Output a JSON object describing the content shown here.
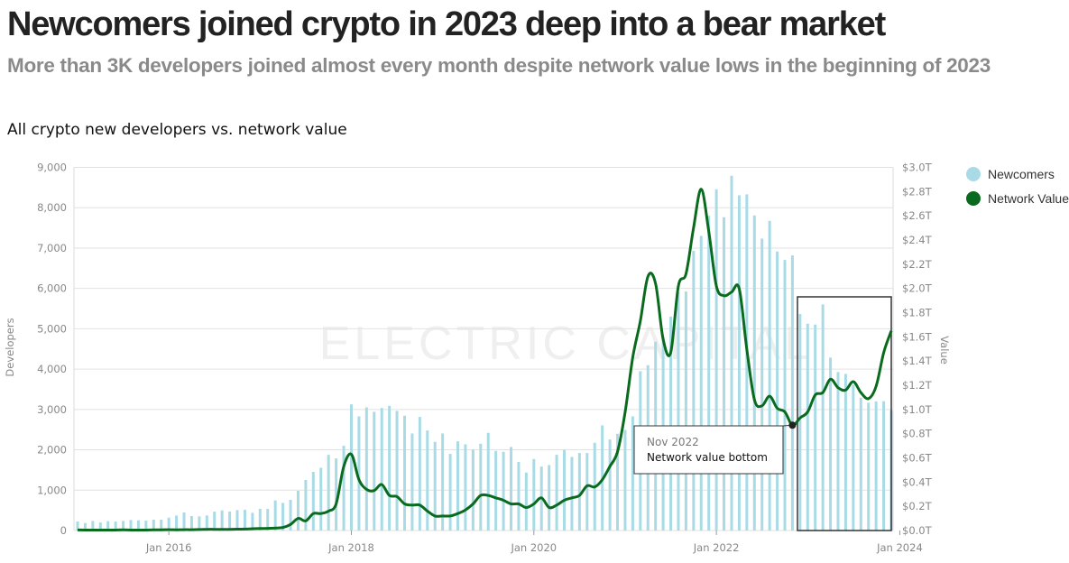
{
  "header": {
    "title": "Newcomers joined crypto in 2023 deep into a bear market",
    "subtitle": "More than 3K developers joined almost every month despite network value lows in the beginning of 2023"
  },
  "chart_data": {
    "type": "bar+line",
    "title": "All crypto new developers vs. network value",
    "watermark": "ELECTRIC CAPITAL",
    "ylabel_left": "Developers",
    "ylabel_right": "Value",
    "ylim_left": [
      0,
      9000
    ],
    "ylim_right": [
      0,
      3.0
    ],
    "yticks_left": [
      "0",
      "1,000",
      "2,000",
      "3,000",
      "4,000",
      "5,000",
      "6,000",
      "7,000",
      "8,000",
      "9,000"
    ],
    "yticks_right": [
      "$0.0T",
      "$0.2T",
      "$0.4T",
      "$0.6T",
      "$0.8T",
      "$1.0T",
      "$1.2T",
      "$1.4T",
      "$1.6T",
      "$1.8T",
      "$2.0T",
      "$2.2T",
      "$2.4T",
      "$2.6T",
      "$2.8T",
      "$3.0T"
    ],
    "xticks": [
      "Jan 2016",
      "Jan 2018",
      "Jan 2020",
      "Jan 2022",
      "Jan 2024"
    ],
    "grid": true,
    "legend_position": "right",
    "colors": {
      "newcomers": "#a9dbe6",
      "network_value": "#0a6b1f"
    },
    "x": [
      "2015-01",
      "2015-02",
      "2015-03",
      "2015-04",
      "2015-05",
      "2015-06",
      "2015-07",
      "2015-08",
      "2015-09",
      "2015-10",
      "2015-11",
      "2015-12",
      "2016-01",
      "2016-02",
      "2016-03",
      "2016-04",
      "2016-05",
      "2016-06",
      "2016-07",
      "2016-08",
      "2016-09",
      "2016-10",
      "2016-11",
      "2016-12",
      "2017-01",
      "2017-02",
      "2017-03",
      "2017-04",
      "2017-05",
      "2017-06",
      "2017-07",
      "2017-08",
      "2017-09",
      "2017-10",
      "2017-11",
      "2017-12",
      "2018-01",
      "2018-02",
      "2018-03",
      "2018-04",
      "2018-05",
      "2018-06",
      "2018-07",
      "2018-08",
      "2018-09",
      "2018-10",
      "2018-11",
      "2018-12",
      "2019-01",
      "2019-02",
      "2019-03",
      "2019-04",
      "2019-05",
      "2019-06",
      "2019-07",
      "2019-08",
      "2019-09",
      "2019-10",
      "2019-11",
      "2019-12",
      "2020-01",
      "2020-02",
      "2020-03",
      "2020-04",
      "2020-05",
      "2020-06",
      "2020-07",
      "2020-08",
      "2020-09",
      "2020-10",
      "2020-11",
      "2020-12",
      "2021-01",
      "2021-02",
      "2021-03",
      "2021-04",
      "2021-05",
      "2021-06",
      "2021-07",
      "2021-08",
      "2021-09",
      "2021-10",
      "2021-11",
      "2021-12",
      "2022-01",
      "2022-02",
      "2022-03",
      "2022-04",
      "2022-05",
      "2022-06",
      "2022-07",
      "2022-08",
      "2022-09",
      "2022-10",
      "2022-11",
      "2022-12",
      "2023-01",
      "2023-02",
      "2023-03",
      "2023-04",
      "2023-05",
      "2023-06",
      "2023-07",
      "2023-08",
      "2023-09",
      "2023-10",
      "2023-11",
      "2023-12"
    ],
    "series": [
      {
        "name": "Newcomers",
        "type": "bar",
        "axis": "left",
        "values": [
          223,
          186,
          238,
          200,
          230,
          223,
          238,
          260,
          253,
          245,
          268,
          268,
          320,
          372,
          447,
          357,
          350,
          372,
          469,
          499,
          469,
          506,
          514,
          439,
          536,
          536,
          745,
          685,
          760,
          983,
          1251,
          1452,
          1556,
          1876,
          1787,
          2100,
          3127,
          2830,
          3053,
          2941,
          3038,
          3090,
          2964,
          2844,
          2405,
          2815,
          2480,
          2197,
          2405,
          1899,
          2211,
          2137,
          2010,
          2152,
          2420,
          1973,
          1951,
          2070,
          1698,
          1437,
          1772,
          1586,
          1623,
          1876,
          1996,
          1824,
          1921,
          1921,
          2174,
          2606,
          2256,
          2398,
          2494,
          2830,
          3949,
          4098,
          4680,
          4800,
          5300,
          5900,
          5924,
          6930,
          7302,
          7800,
          8457,
          7764,
          8793,
          8308,
          8331,
          7809,
          7235,
          7675,
          6915,
          6706,
          6818,
          5365,
          5127,
          5104,
          5604,
          4285,
          3927,
          3882,
          3614,
          3294,
          3167,
          3200,
          3204,
          2980
        ]
      },
      {
        "name": "Network Value",
        "type": "line",
        "axis": "right",
        "unit": "T",
        "values": [
          0.005,
          0.004,
          0.004,
          0.004,
          0.004,
          0.004,
          0.005,
          0.004,
          0.004,
          0.004,
          0.005,
          0.006,
          0.007,
          0.006,
          0.007,
          0.007,
          0.008,
          0.01,
          0.01,
          0.01,
          0.01,
          0.011,
          0.012,
          0.015,
          0.017,
          0.018,
          0.02,
          0.025,
          0.05,
          0.1,
          0.08,
          0.14,
          0.14,
          0.16,
          0.22,
          0.53,
          0.63,
          0.42,
          0.34,
          0.33,
          0.38,
          0.29,
          0.28,
          0.22,
          0.21,
          0.21,
          0.16,
          0.12,
          0.12,
          0.12,
          0.14,
          0.17,
          0.22,
          0.29,
          0.29,
          0.27,
          0.25,
          0.22,
          0.22,
          0.19,
          0.22,
          0.27,
          0.19,
          0.21,
          0.25,
          0.27,
          0.29,
          0.37,
          0.36,
          0.42,
          0.53,
          0.65,
          0.98,
          1.43,
          1.73,
          2.1,
          2.04,
          1.58,
          1.47,
          2.02,
          2.12,
          2.5,
          2.82,
          2.47,
          2.02,
          1.94,
          1.97,
          2.0,
          1.5,
          1.08,
          1.03,
          1.11,
          1.01,
          0.98,
          0.87,
          0.93,
          0.98,
          1.12,
          1.14,
          1.25,
          1.18,
          1.16,
          1.23,
          1.14,
          1.09,
          1.19,
          1.47,
          1.65
        ]
      }
    ],
    "annotation": {
      "point": "2022-11",
      "date_label": "Nov 2022",
      "text": "Network value bottom",
      "highlight_range": [
        "2022-11",
        "2023-12"
      ]
    }
  }
}
